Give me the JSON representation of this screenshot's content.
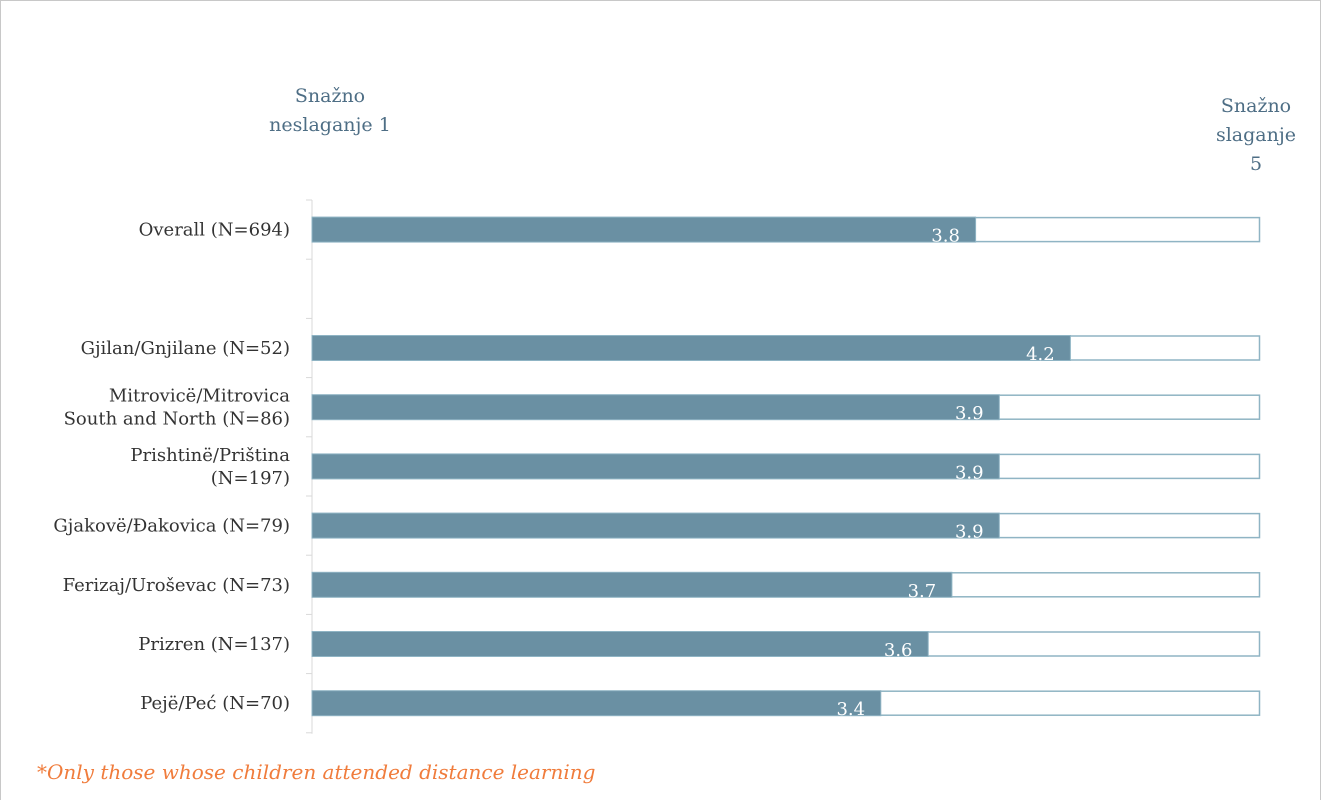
{
  "scale": {
    "left_label_line1": "Snažno",
    "left_label_line2": "neslaganje 1",
    "right_label_line1": "Snažno",
    "right_label_line2": "slaganje",
    "right_label_line3": "5"
  },
  "footnote": "*Only those whose children attended distance learning",
  "colors": {
    "bar": "#6a90a3",
    "track_border": "#8fb4c4",
    "axis": "#d9d9d9",
    "footnote": "#f07c3c",
    "scale_text": "#4e6e85"
  },
  "chart_data": {
    "type": "bar",
    "orientation": "horizontal",
    "categories": [
      [
        "Overall (N=694)"
      ],
      [
        ""
      ],
      [
        "Gjilan/Gnjilane (N=52)"
      ],
      [
        "Mitrovicë/Mitrovica",
        "South and North (N=86)"
      ],
      [
        "Prishtinë/Priština",
        "(N=197)"
      ],
      [
        "Gjakovë/Đakovica (N=79)"
      ],
      [
        "Ferizaj/Uroševac (N=73)"
      ],
      [
        "Prizren (N=137)"
      ],
      [
        "Pejë/Peć (N=70)"
      ]
    ],
    "values": [
      3.8,
      null,
      4.2,
      3.9,
      3.9,
      3.9,
      3.7,
      3.6,
      3.4
    ],
    "value_labels": [
      "3.8",
      "",
      "4.2",
      "3.9",
      "3.9",
      "3.9",
      "3.7",
      "3.6",
      "3.4"
    ],
    "xlim": [
      1,
      5
    ],
    "track_max": 5,
    "grid": false,
    "legend": "none"
  }
}
